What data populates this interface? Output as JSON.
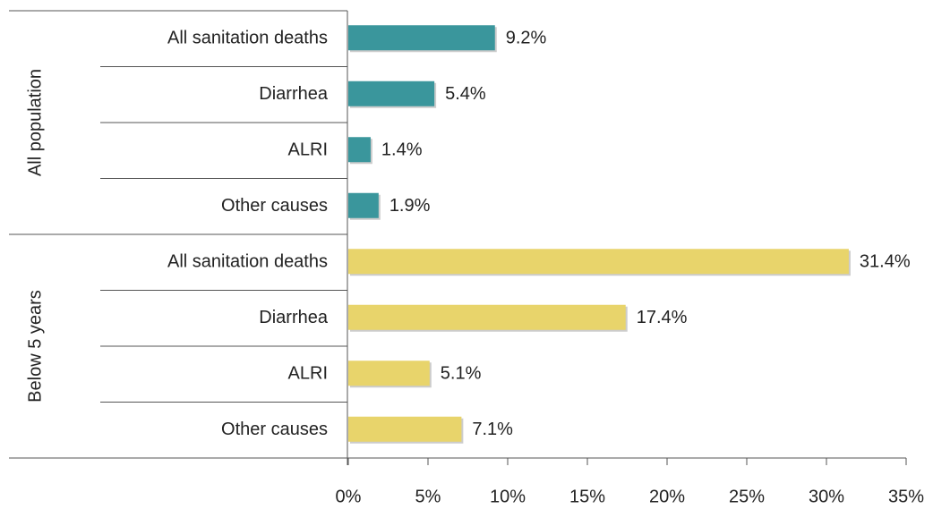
{
  "chart_data": {
    "type": "bar",
    "orientation": "horizontal",
    "groups": [
      {
        "name": "All population",
        "color": "#3a969c",
        "categories": [
          "All sanitation deaths",
          "Diarrhea",
          "ALRI",
          "Other causes"
        ],
        "values": [
          9.2,
          5.4,
          1.4,
          1.9
        ],
        "value_labels": [
          "9.2%",
          "5.4%",
          "1.4%",
          "1.9%"
        ]
      },
      {
        "name": "Below 5 years",
        "color": "#e8d46b",
        "categories": [
          "All sanitation deaths",
          "Diarrhea",
          "ALRI",
          "Other causes"
        ],
        "values": [
          31.4,
          17.4,
          5.1,
          7.1
        ],
        "value_labels": [
          "31.4%",
          "17.4%",
          "5.1%",
          "7.1%"
        ]
      }
    ],
    "xlim": [
      0,
      35
    ],
    "xticks": [
      {
        "value": 0,
        "label": "0%"
      },
      {
        "value": 5,
        "label": "5%"
      },
      {
        "value": 10,
        "label": "10%"
      },
      {
        "value": 15,
        "label": "15%"
      },
      {
        "value": 20,
        "label": "20%"
      },
      {
        "value": 25,
        "label": "25%"
      },
      {
        "value": 30,
        "label": "30%"
      },
      {
        "value": 35,
        "label": "35%"
      }
    ]
  }
}
